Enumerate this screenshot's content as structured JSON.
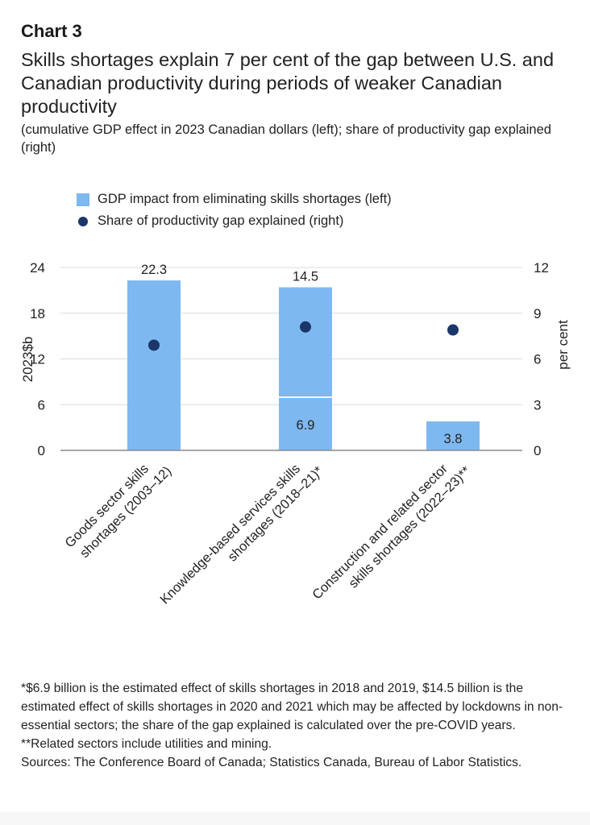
{
  "chart_label": "Chart 3",
  "title": "Skills shortages explain 7 per cent of the gap between U.S. and Canadian productivity during periods of weaker Canadian productivity",
  "subtitle": "(cumulative GDP effect in 2023 Canadian dollars (left); share of productivity gap explained (right)",
  "legend": [
    {
      "label": "GDP impact from eliminating skills shortages (left)",
      "marker": "square",
      "color": "#7eb8f0"
    },
    {
      "label": "Share of productivity gap explained (right)",
      "marker": "dot",
      "color": "#1b3668"
    }
  ],
  "chart_data": {
    "type": "bar",
    "title": "Skills shortages explain 7 per cent of the gap between U.S. and Canadian productivity during periods of weaker Canadian productivity",
    "categories": [
      "Goods sector skills shortages (2003–12)",
      "Knowledge-based services skills shortages (2018–21)*",
      "Construction and related sector skills shortages (2022–23)**"
    ],
    "category_lines": [
      [
        "Goods sector skills",
        "shortages (2003–12)"
      ],
      [
        "Knowledge-based services skills",
        "shortages (2018–21)*"
      ],
      [
        "Construction and related sector",
        "skills shortages (2022–23)**"
      ]
    ],
    "series": [
      {
        "name": "GDP impact from eliminating skills shortages (left) – first period",
        "axis": "left",
        "kind": "bar",
        "color": "#7eb8f0",
        "values": [
          22.3,
          6.9,
          3.8
        ]
      },
      {
        "name": "GDP impact from eliminating skills shortages (left) – 2020–21 additional",
        "axis": "left",
        "kind": "bar-stack",
        "color": "#7eb8f0",
        "values": [
          null,
          14.5,
          null
        ]
      },
      {
        "name": "Share of productivity gap explained (right)",
        "axis": "right",
        "kind": "dot",
        "color": "#1b3668",
        "values": [
          6.9,
          8.1,
          7.9
        ]
      }
    ],
    "bar_labels": [
      {
        "category": 0,
        "text": "22.3",
        "position": "above"
      },
      {
        "category": 1,
        "text": "14.5",
        "position": "above"
      },
      {
        "category": 1,
        "text": "6.9",
        "position": "inside-bottom"
      },
      {
        "category": 2,
        "text": "3.8",
        "position": "inside"
      }
    ],
    "xlabel": "",
    "ylabel": "2023$b",
    "ylabel_right": "per cent",
    "ylim": [
      0,
      24
    ],
    "ylim_right": [
      0,
      12
    ],
    "yticks": [
      "0",
      "6",
      "12",
      "18",
      "24"
    ],
    "yticks_right": [
      "0",
      "3",
      "6",
      "9",
      "12"
    ],
    "grid": true,
    "legend_position": "top-left"
  },
  "notes": [
    "*$6.9 billion is the estimated effect of skills shortages in 2018 and 2019, $14.5 billion is the estimated effect of skills shortages in 2020 and 2021 which may be affected by lockdowns in non-essential sectors; the share of the gap explained is calculated over the pre-COVID years.",
    "**Related sectors include utilities and mining.",
    "Sources: The Conference Board of Canada; Statistics Canada, Bureau of Labor Statistics."
  ]
}
